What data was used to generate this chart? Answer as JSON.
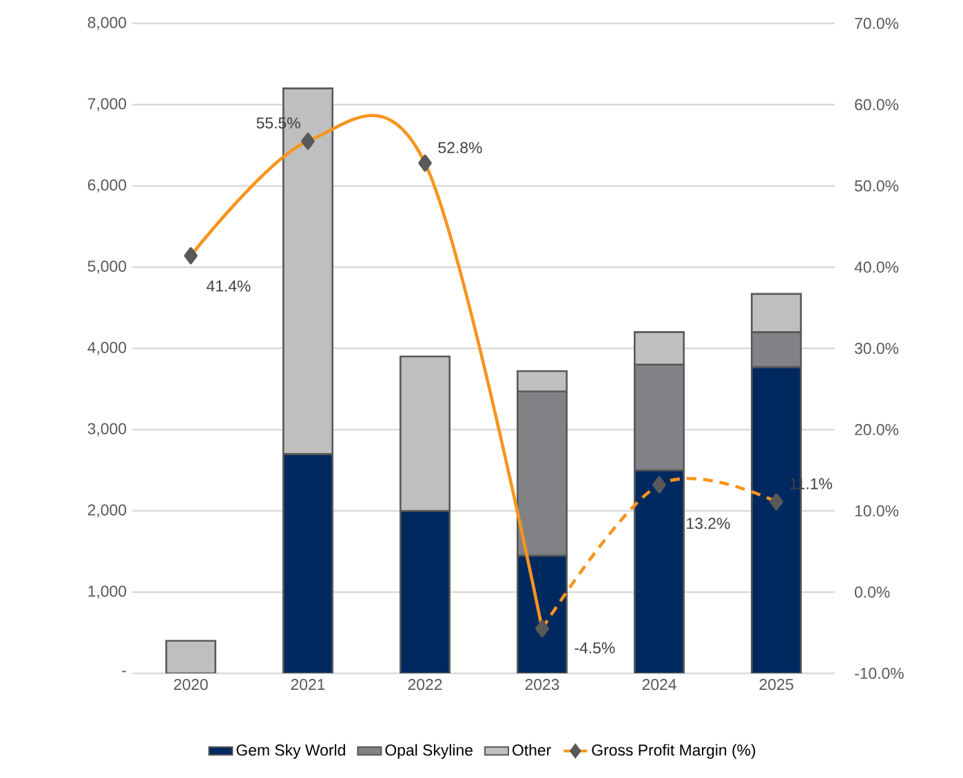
{
  "chart_data": {
    "type": "bar",
    "stacked": true,
    "categories": [
      "2020",
      "2021",
      "2022",
      "2023",
      "2024",
      "2025"
    ],
    "series": [
      {
        "name": "Gem Sky World",
        "color": "#002960",
        "values": [
          null,
          2700,
          2000,
          1450,
          2500,
          3770
        ]
      },
      {
        "name": "Opal Skyline",
        "color": "#808285",
        "values": [
          null,
          null,
          null,
          2020,
          1300,
          430
        ]
      },
      {
        "name": "Other",
        "color": "#bfbfbf",
        "values": [
          400,
          4500,
          1900,
          250,
          400,
          470
        ]
      },
      {
        "name": "Gross Profit Margin (%)",
        "type": "line",
        "axis": "y2",
        "color": "#f7941d",
        "marker": "diamond",
        "line_style": "solid",
        "values": [
          41.4,
          55.5,
          52.8,
          -4.5,
          null,
          null
        ],
        "value_labels": [
          "41.4%",
          "55.5%",
          "52.8%",
          "-4.5%",
          null,
          null
        ]
      },
      {
        "type": "line",
        "axis": "y2",
        "color": "#f7941d",
        "marker": "diamond",
        "line_style": "dashed",
        "values": [
          null,
          null,
          null,
          -4.5,
          13.2,
          11.1
        ],
        "value_labels": [
          null,
          null,
          null,
          null,
          "13.2%",
          "11.1%"
        ]
      }
    ],
    "ylim": [
      0,
      8000
    ],
    "yticks": [
      {
        "value": 0,
        "label": "-"
      },
      {
        "value": 1000,
        "label": "1,000"
      },
      {
        "value": 2000,
        "label": "2,000"
      },
      {
        "value": 3000,
        "label": "3,000"
      },
      {
        "value": 4000,
        "label": "4,000"
      },
      {
        "value": 5000,
        "label": "5,000"
      },
      {
        "value": 6000,
        "label": "6,000"
      },
      {
        "value": 7000,
        "label": "7,000"
      },
      {
        "value": 8000,
        "label": "8,000"
      }
    ],
    "y2lim": [
      -10,
      70
    ],
    "y2ticks": [
      {
        "value": -10,
        "label": "-10.0%"
      },
      {
        "value": 0,
        "label": "0.0%"
      },
      {
        "value": 10,
        "label": "10.0%"
      },
      {
        "value": 20,
        "label": "20.0%"
      },
      {
        "value": 30,
        "label": "30.0%"
      },
      {
        "value": 40,
        "label": "40.0%"
      },
      {
        "value": 50,
        "label": "50.0%"
      },
      {
        "value": 60,
        "label": "60.0%"
      },
      {
        "value": 70,
        "label": "70.0%"
      }
    ],
    "grid": "y",
    "legend": "bottom"
  }
}
